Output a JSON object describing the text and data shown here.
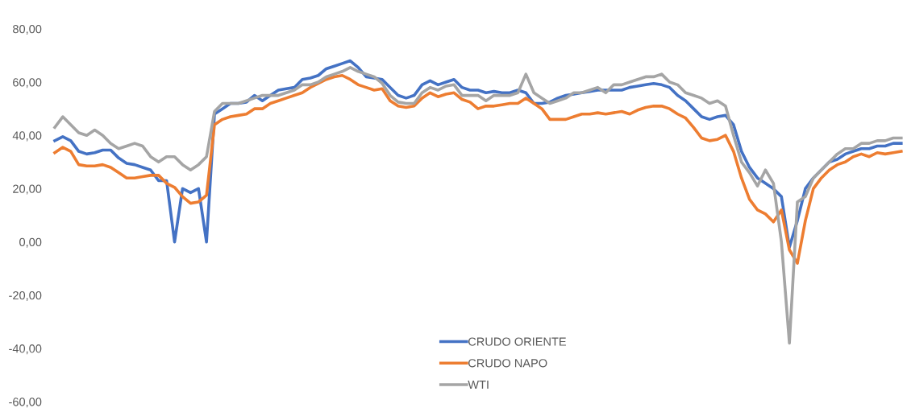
{
  "chart_data": {
    "type": "line",
    "categories": [
      null,
      null,
      null,
      null,
      null,
      null,
      null,
      null,
      null,
      null,
      null,
      null,
      null,
      null,
      null,
      null,
      null,
      null,
      null,
      null,
      null,
      null,
      null,
      null,
      null,
      null,
      null,
      null,
      null,
      null,
      null,
      null,
      null,
      null,
      null,
      null,
      null,
      null,
      null,
      null,
      null,
      null,
      null,
      null,
      null,
      null,
      null,
      null,
      null,
      null,
      null,
      null,
      null,
      null,
      null,
      null,
      null,
      null,
      null,
      null,
      null,
      null,
      null,
      null,
      null,
      null,
      null,
      null,
      null,
      null,
      null,
      null,
      null,
      null,
      null,
      null,
      null,
      null,
      null,
      null,
      null,
      null,
      null,
      null,
      null,
      null,
      null,
      null,
      null,
      null,
      null,
      null,
      null,
      null,
      null,
      null,
      null,
      null,
      null,
      null,
      null,
      null,
      null,
      null,
      null,
      null,
      null
    ],
    "series": [
      {
        "name": "CRUDO ORIENTE",
        "color": "#4472c4",
        "values": [
          38,
          39.5,
          38,
          34,
          33,
          33.5,
          34.5,
          34.5,
          31.5,
          29.5,
          29,
          28,
          27,
          23,
          23,
          0,
          20,
          18.5,
          20,
          0,
          48,
          50,
          52,
          52,
          52.5,
          55,
          53,
          55,
          57,
          57.5,
          58,
          61,
          61.5,
          62.5,
          65,
          66,
          67,
          68,
          65.5,
          62,
          61.5,
          61,
          58,
          55,
          54,
          55,
          59,
          60.5,
          59,
          60,
          61,
          58,
          57,
          57,
          56,
          56.5,
          56,
          56,
          57,
          56,
          52,
          52,
          52.5,
          54,
          55,
          55.5,
          56,
          56.5,
          57,
          57,
          57,
          57,
          58,
          58.5,
          59,
          59.5,
          59,
          58,
          55,
          53,
          50,
          47,
          46,
          47,
          47.5,
          44,
          34,
          28,
          24,
          22,
          20,
          17,
          -2,
          8,
          20,
          24,
          27,
          30,
          31,
          33,
          34,
          35,
          35,
          36,
          36,
          37,
          37
        ]
      },
      {
        "name": "CRUDO NAPO",
        "color": "#ed7d31",
        "values": [
          33.5,
          35.5,
          34,
          29,
          28.5,
          28.5,
          29,
          28,
          26,
          24,
          24,
          24.5,
          25,
          25,
          22,
          20.5,
          17,
          14.5,
          15,
          17.5,
          44,
          46,
          47,
          47.5,
          48,
          50,
          50,
          52,
          53,
          54,
          55,
          56,
          58,
          59.5,
          61,
          62,
          62.5,
          61,
          59,
          58,
          57,
          57.5,
          53,
          51,
          50.5,
          51,
          54,
          56,
          54.5,
          55.5,
          56,
          53.5,
          52.5,
          50,
          51,
          51,
          51.5,
          52,
          52,
          54,
          52,
          50,
          46,
          46,
          46,
          47,
          48,
          48,
          48.5,
          48,
          48.5,
          49,
          48,
          49.5,
          50.5,
          51,
          51,
          50,
          48,
          46.5,
          43,
          39,
          38,
          38.5,
          40,
          34,
          24,
          16,
          12,
          10.5,
          7.5,
          12,
          -3,
          -8,
          8,
          20,
          24,
          27,
          29,
          30,
          32,
          33,
          32,
          33.5,
          33,
          33.5,
          34
        ]
      },
      {
        "name": "WTI",
        "color": "#a5a5a5",
        "values": [
          43,
          47,
          44,
          41,
          40,
          42,
          40,
          37,
          35,
          36,
          37,
          36,
          32,
          30,
          32,
          32,
          29,
          27,
          29,
          32,
          49,
          52,
          52,
          52,
          53,
          54,
          55,
          55,
          55,
          56,
          57,
          59,
          59,
          60,
          62,
          63,
          64,
          65.5,
          64,
          63,
          62,
          59.5,
          55,
          52.5,
          52,
          52,
          56,
          58,
          57,
          58.5,
          59,
          55,
          55,
          55,
          53,
          55,
          55,
          55,
          56,
          63,
          56,
          54,
          52,
          53,
          54,
          56,
          56,
          57,
          58,
          56,
          59,
          59,
          60,
          61,
          62,
          62,
          63,
          60,
          59,
          56,
          55,
          54,
          52,
          53,
          51,
          40,
          30,
          26,
          21,
          27,
          22,
          0,
          -38,
          15,
          17,
          24,
          27,
          30,
          33,
          35,
          35,
          37,
          37,
          38,
          38,
          39,
          39
        ]
      }
    ],
    "ylim": [
      -60,
      80
    ],
    "yticks": [
      {
        "value": -60,
        "label": "-60,00"
      },
      {
        "value": -40,
        "label": "-40,00"
      },
      {
        "value": -20,
        "label": "-20,00"
      },
      {
        "value": 0,
        "label": "0,00"
      },
      {
        "value": 20,
        "label": "20,00"
      },
      {
        "value": 40,
        "label": "40,00"
      },
      {
        "value": 60,
        "label": "60,00"
      },
      {
        "value": 80,
        "label": "80,00"
      }
    ],
    "tick_labels": "y",
    "grid": false,
    "legend": "bottom",
    "marker": "none",
    "line_style": "solid"
  }
}
